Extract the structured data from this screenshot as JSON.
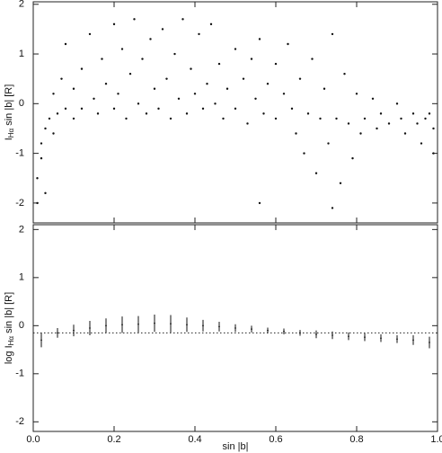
{
  "chart_data": [
    {
      "type": "scatter",
      "ylabel": {
        "main": "I",
        "sub": "Hα",
        "rest": " sin |b| [R]"
      },
      "color": "#111111",
      "xlim": [
        0,
        1
      ],
      "ylim": [
        -2.4,
        2.05
      ],
      "xticks": [
        {
          "value": 0,
          "label": "0.0"
        },
        0.2,
        0.4,
        0.6,
        0.8,
        {
          "value": 1,
          "label": "1.0"
        }
      ],
      "yticks": [
        2,
        1,
        0,
        -1,
        -2
      ],
      "x": [
        0.01,
        0.01,
        0.02,
        0.02,
        0.03,
        0.03,
        0.04,
        0.05,
        0.05,
        0.06,
        0.07,
        0.08,
        0.08,
        0.1,
        0.1,
        0.12,
        0.12,
        0.14,
        0.15,
        0.16,
        0.17,
        0.18,
        0.2,
        0.2,
        0.21,
        0.22,
        0.23,
        0.24,
        0.25,
        0.26,
        0.27,
        0.28,
        0.29,
        0.3,
        0.31,
        0.32,
        0.33,
        0.34,
        0.35,
        0.36,
        0.37,
        0.38,
        0.39,
        0.4,
        0.41,
        0.42,
        0.43,
        0.44,
        0.45,
        0.46,
        0.47,
        0.48,
        0.5,
        0.5,
        0.52,
        0.53,
        0.54,
        0.55,
        0.56,
        0.57,
        0.58,
        0.6,
        0.6,
        0.62,
        0.63,
        0.64,
        0.65,
        0.66,
        0.67,
        0.68,
        0.69,
        0.7,
        0.71,
        0.72,
        0.73,
        0.74,
        0.75,
        0.76,
        0.77,
        0.78,
        0.79,
        0.8,
        0.81,
        0.82,
        0.84,
        0.85,
        0.86,
        0.88,
        0.9,
        0.91,
        0.92,
        0.94,
        0.95,
        0.96,
        0.97,
        0.98,
        0.99,
        0.99,
        0.56,
        0.74
      ],
      "values": [
        -2.0,
        -1.5,
        -1.1,
        -0.8,
        -0.5,
        -1.8,
        -0.3,
        -0.6,
        0.2,
        -0.2,
        0.5,
        -0.1,
        1.2,
        0.3,
        -0.3,
        0.7,
        -0.1,
        1.4,
        0.1,
        -0.2,
        0.9,
        0.4,
        1.6,
        -0.1,
        0.2,
        1.1,
        -0.3,
        0.6,
        1.7,
        0,
        0.9,
        -0.2,
        1.3,
        0.3,
        -0.1,
        1.5,
        0.5,
        -0.3,
        1.0,
        0.1,
        1.7,
        -0.2,
        0.7,
        0.2,
        1.4,
        -0.1,
        0.4,
        1.6,
        0,
        0.8,
        -0.3,
        0.3,
        1.1,
        -0.1,
        0.5,
        -0.4,
        0.9,
        0.1,
        1.3,
        -0.2,
        0.4,
        0.8,
        -0.3,
        0.2,
        1.2,
        -0.1,
        -0.6,
        0.5,
        -1.0,
        -0.2,
        0.9,
        -1.4,
        -0.3,
        0.3,
        -0.8,
        1.4,
        -0.3,
        -1.6,
        0.6,
        -0.4,
        -1.1,
        0.2,
        -0.6,
        -0.3,
        0.1,
        -0.5,
        -0.2,
        -0.4,
        0,
        -0.3,
        -0.6,
        -0.2,
        -0.4,
        -0.8,
        -0.3,
        -0.2,
        -0.5,
        -1.0,
        -2.0,
        -2.1
      ]
    },
    {
      "type": "errorbar",
      "xlabel": "sin |b|",
      "ylabel": {
        "main": "log I",
        "sub": "Hα",
        "rest": " sin |b| [R]"
      },
      "color": "#111111",
      "xlim": [
        0,
        1
      ],
      "ylim": [
        -2.2,
        2.1
      ],
      "xticks": [
        {
          "value": 0,
          "label": "0.0"
        },
        0.2,
        0.4,
        0.6,
        0.8,
        {
          "value": 1,
          "label": "1.0"
        }
      ],
      "yticks": [
        2,
        1,
        0,
        -1,
        -2
      ],
      "reference_line": -0.15,
      "x": [
        0.02,
        0.06,
        0.1,
        0.14,
        0.18,
        0.22,
        0.26,
        0.3,
        0.34,
        0.38,
        0.42,
        0.46,
        0.5,
        0.54,
        0.58,
        0.62,
        0.66,
        0.7,
        0.74,
        0.78,
        0.82,
        0.86,
        0.9,
        0.94,
        0.98
      ],
      "values": [
        -0.3,
        -0.15,
        -0.1,
        -0.05,
        0,
        0.02,
        0.03,
        0.05,
        0.04,
        0.02,
        0,
        -0.02,
        -0.05,
        -0.07,
        -0.1,
        -0.12,
        -0.15,
        -0.18,
        -0.2,
        -0.22,
        -0.24,
        -0.26,
        -0.28,
        -0.3,
        -0.35
      ],
      "errors": [
        0.15,
        0.1,
        0.12,
        0.15,
        0.15,
        0.17,
        0.17,
        0.18,
        0.18,
        0.15,
        0.12,
        0.1,
        0.08,
        0.07,
        0.06,
        0.06,
        0.06,
        0.08,
        0.08,
        0.08,
        0.08,
        0.08,
        0.08,
        0.1,
        0.12
      ]
    }
  ]
}
